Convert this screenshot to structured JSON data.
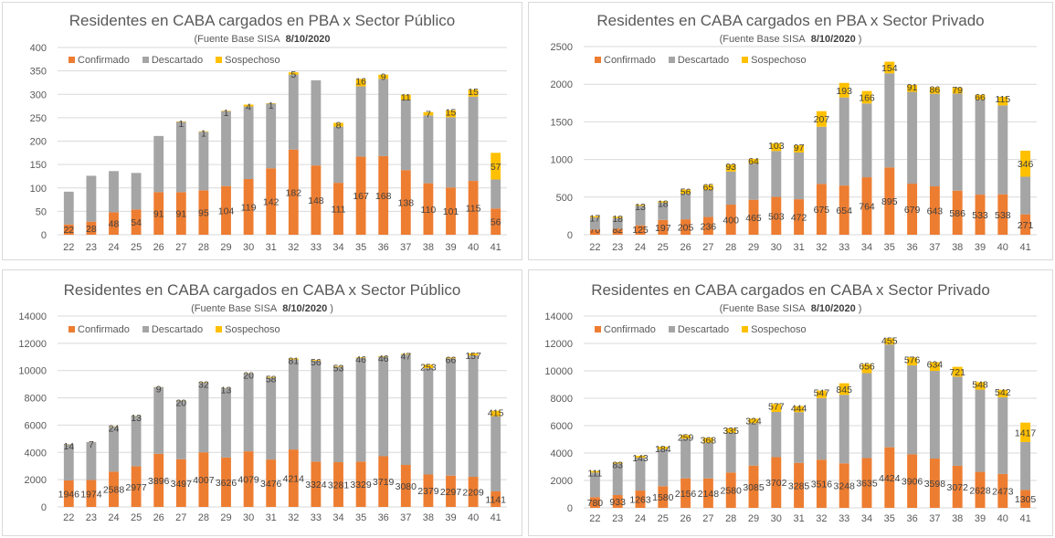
{
  "colors": {
    "confirmado": "#ED7D31",
    "descartado": "#A5A5A5",
    "sospechoso": "#FFC000",
    "grid": "#D9D9D9",
    "text": "#595959"
  },
  "chart_data": [
    {
      "type": "bar",
      "stacked": true,
      "title": "Residentes en CABA cargados en PBA x Sector Público",
      "source": "(Fuente  Base SISA",
      "date": "8/10/2020",
      "source_close": "",
      "ylim": [
        0,
        400
      ],
      "yticks": [
        0,
        50,
        100,
        150,
        200,
        250,
        300,
        350,
        400
      ],
      "legend": "top-left",
      "categories": [
        "22",
        "23",
        "24",
        "25",
        "26",
        "27",
        "28",
        "29",
        "30",
        "31",
        "32",
        "33",
        "34",
        "35",
        "36",
        "37",
        "38",
        "39",
        "40",
        "41"
      ],
      "series": [
        {
          "name": "Confirmado",
          "values": [
            22,
            28,
            48,
            54,
            91,
            91,
            95,
            104,
            119,
            142,
            182,
            148,
            111,
            167,
            168,
            138,
            110,
            101,
            115,
            56
          ],
          "labels": [
            "22",
            "28",
            "48",
            "54",
            "91",
            "91",
            "95",
            "104",
            "119",
            "142",
            "182",
            "148",
            "111",
            "167",
            "168",
            "138",
            "110",
            "101",
            "115",
            "56"
          ]
        },
        {
          "name": "Descartado",
          "values": [
            70,
            98,
            88,
            78,
            120,
            150,
            125,
            160,
            155,
            138,
            160,
            182,
            120,
            150,
            165,
            150,
            145,
            150,
            180,
            62
          ],
          "labels": []
        },
        {
          "name": "Sospechoso",
          "values": [
            0,
            0,
            0,
            0,
            0,
            1,
            1,
            1,
            4,
            1,
            5,
            0,
            8,
            16,
            9,
            11,
            7,
            15,
            15,
            57
          ],
          "labels": [
            "",
            "",
            "",
            "",
            "",
            "1",
            "1",
            "1",
            "4",
            "1",
            "5",
            "",
            "8",
            "16",
            "9",
            "11",
            "7",
            "15",
            "15",
            "57"
          ]
        }
      ]
    },
    {
      "type": "bar",
      "stacked": true,
      "title": "Residentes en CABA cargados en PBA x Sector Privado",
      "source": "(Fuente  Base SISA",
      "date": "8/10/2020",
      "source_close": ")",
      "ylim": [
        0,
        2500
      ],
      "yticks": [
        0,
        500,
        1000,
        1500,
        2000,
        2500
      ],
      "legend": "top-left",
      "categories": [
        "22",
        "23",
        "24",
        "25",
        "26",
        "27",
        "28",
        "29",
        "30",
        "31",
        "32",
        "33",
        "34",
        "35",
        "36",
        "37",
        "38",
        "39",
        "40",
        "41"
      ],
      "series": [
        {
          "name": "Confirmado",
          "values": [
            70,
            82,
            125,
            197,
            205,
            236,
            400,
            465,
            503,
            472,
            675,
            654,
            764,
            895,
            679,
            643,
            586,
            533,
            538,
            271
          ],
          "labels": [
            "70",
            "82",
            "125",
            "197",
            "205",
            "236",
            "400",
            "465",
            "503",
            "472",
            "675",
            "654",
            "764",
            "895",
            "679",
            "643",
            "586",
            "533",
            "538",
            "271"
          ]
        },
        {
          "name": "Descartado",
          "values": [
            160,
            140,
            260,
            230,
            340,
            360,
            440,
            480,
            610,
            620,
            760,
            1170,
            980,
            1250,
            1220,
            1230,
            1290,
            1260,
            1180,
            500
          ],
          "labels": []
        },
        {
          "name": "Sospechoso",
          "values": [
            17,
            18,
            13,
            18,
            56,
            65,
            93,
            64,
            103,
            97,
            207,
            193,
            166,
            154,
            91,
            86,
            79,
            66,
            115,
            346
          ],
          "labels": [
            "17",
            "18",
            "13",
            "18",
            "56",
            "65",
            "93",
            "64",
            "103",
            "97",
            "207",
            "193",
            "166",
            "154",
            "91",
            "86",
            "79",
            "66",
            "115",
            "346"
          ]
        }
      ]
    },
    {
      "type": "bar",
      "stacked": true,
      "title": "Residentes en CABA cargados en CABA x Sector Público",
      "source": "(Fuente  Base SISA",
      "date": "8/10/2020",
      "source_close": ")",
      "ylim": [
        0,
        14000
      ],
      "yticks": [
        0,
        2000,
        4000,
        6000,
        8000,
        10000,
        12000,
        14000
      ],
      "legend": "top-left",
      "categories": [
        "22",
        "23",
        "24",
        "25",
        "26",
        "27",
        "28",
        "29",
        "30",
        "31",
        "32",
        "33",
        "34",
        "35",
        "36",
        "37",
        "38",
        "39",
        "40",
        "41"
      ],
      "series": [
        {
          "name": "Confirmado",
          "values": [
            1946,
            1974,
            2588,
            2977,
            3896,
            3497,
            4007,
            3626,
            4079,
            3476,
            4214,
            3324,
            3281,
            3329,
            3719,
            3080,
            2379,
            2297,
            2209,
            1141
          ],
          "labels": [
            "1946",
            "1974",
            "2588",
            "2977",
            "3896",
            "3497",
            "4007",
            "3626",
            "4079",
            "3476",
            "4214",
            "3324",
            "3281",
            "3329",
            "3719",
            "3080",
            "2379",
            "2297",
            "2209",
            "1141"
          ]
        },
        {
          "name": "Descartado",
          "values": [
            2650,
            2780,
            3300,
            3700,
            4900,
            4300,
            5100,
            5100,
            5700,
            6000,
            6600,
            7400,
            7000,
            7600,
            7300,
            8100,
            7800,
            8600,
            8900,
            5500
          ],
          "labels": []
        },
        {
          "name": "Sospechoso",
          "values": [
            14,
            7,
            24,
            13,
            9,
            20,
            32,
            13,
            20,
            58,
            81,
            56,
            53,
            46,
            46,
            47,
            253,
            66,
            157,
            415
          ],
          "labels": [
            "14",
            "7",
            "24",
            "13",
            "9",
            "20",
            "32",
            "13",
            "20",
            "58",
            "81",
            "56",
            "53",
            "46",
            "46",
            "47",
            "253",
            "66",
            "157",
            "415"
          ]
        }
      ]
    },
    {
      "type": "bar",
      "stacked": true,
      "title": "Residentes en CABA cargados en CABA x Sector Privado",
      "source": "(Fuente  Base SISA",
      "date": "8/10/2020",
      "source_close": ")",
      "ylim": [
        0,
        14000
      ],
      "yticks": [
        0,
        2000,
        4000,
        6000,
        8000,
        10000,
        12000,
        14000
      ],
      "legend": "top-left",
      "categories": [
        "22",
        "23",
        "24",
        "25",
        "26",
        "27",
        "28",
        "29",
        "30",
        "31",
        "32",
        "33",
        "34",
        "35",
        "36",
        "37",
        "38",
        "39",
        "40",
        "41"
      ],
      "series": [
        {
          "name": "Confirmado",
          "values": [
            780,
            933,
            1263,
            1580,
            2156,
            2148,
            2580,
            3085,
            3702,
            3285,
            3516,
            3248,
            3635,
            4424,
            3906,
            3598,
            3072,
            2628,
            2473,
            1305
          ],
          "labels": [
            "780",
            "933",
            "1263",
            "1580",
            "2156",
            "2148",
            "2580",
            "3085",
            "3702",
            "3285",
            "3516",
            "3248",
            "3635",
            "4424",
            "3906",
            "3598",
            "3072",
            "2628",
            "2473",
            "1305"
          ]
        },
        {
          "name": "Descartado",
          "values": [
            1800,
            2300,
            2400,
            2700,
            2900,
            2600,
            2900,
            3100,
            3300,
            3700,
            4500,
            5000,
            6200,
            7500,
            6500,
            6400,
            6500,
            6000,
            5600,
            3500
          ],
          "labels": []
        },
        {
          "name": "Sospechoso",
          "values": [
            111,
            83,
            143,
            184,
            259,
            368,
            335,
            324,
            577,
            444,
            547,
            845,
            656,
            455,
            576,
            634,
            721,
            548,
            542,
            1417
          ],
          "labels": [
            "111",
            "83",
            "143",
            "184",
            "259",
            "368",
            "335",
            "324",
            "577",
            "444",
            "547",
            "845",
            "656",
            "455",
            "576",
            "634",
            "721",
            "548",
            "542",
            "1417"
          ]
        }
      ]
    }
  ]
}
